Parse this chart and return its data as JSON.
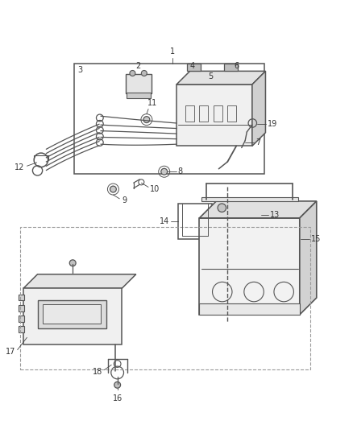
{
  "background_color": "#ffffff",
  "line_color": "#555555",
  "text_color": "#333333",
  "figsize": [
    4.38,
    5.33
  ],
  "dpi": 100
}
